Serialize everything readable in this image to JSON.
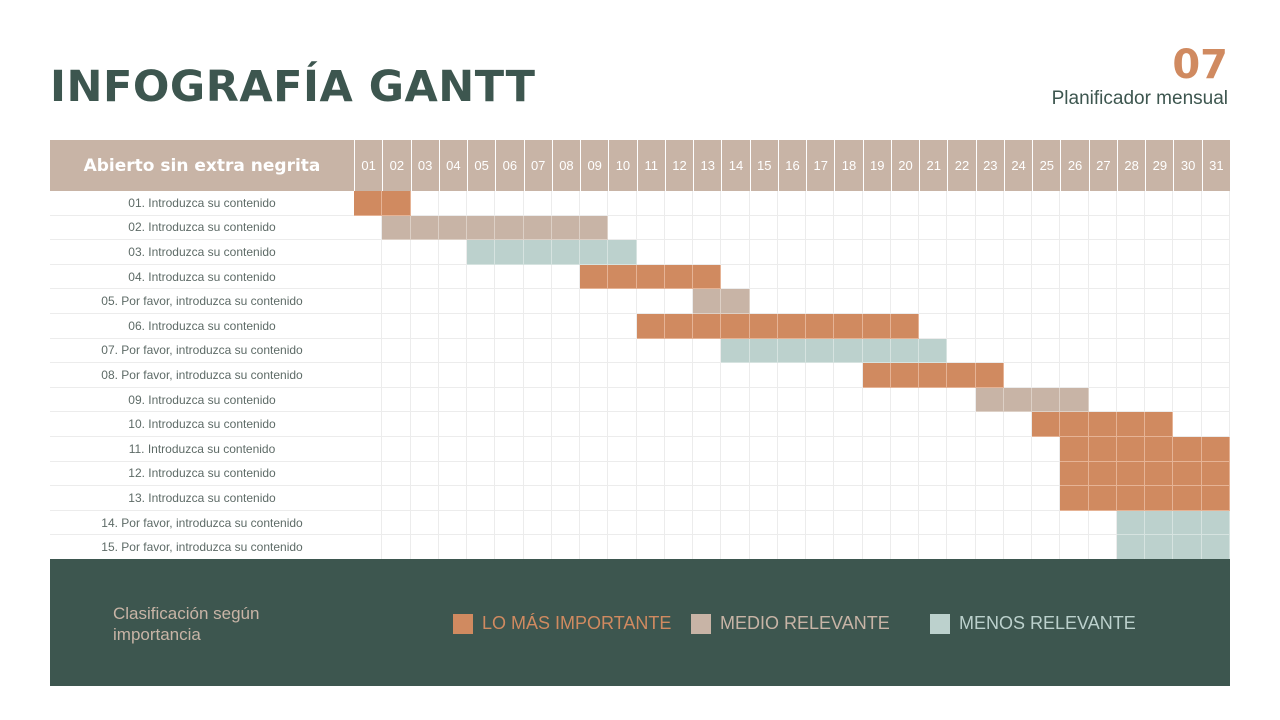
{
  "header": {
    "title": "INFOGRAFÍA GANTT",
    "page_number": "07",
    "subtitle": "Planificador mensual"
  },
  "table": {
    "header_label": "Abierto sin extra negrita",
    "days": [
      "01",
      "02",
      "03",
      "04",
      "05",
      "06",
      "07",
      "08",
      "09",
      "10",
      "11",
      "12",
      "13",
      "14",
      "15",
      "16",
      "17",
      "18",
      "19",
      "20",
      "21",
      "22",
      "23",
      "24",
      "25",
      "26",
      "27",
      "28",
      "29",
      "30",
      "31"
    ],
    "rows": [
      {
        "label": "01. Introduzca su contenido",
        "start": 1,
        "end": 2,
        "level": "high"
      },
      {
        "label": "02. Introduzca su contenido",
        "start": 2,
        "end": 9,
        "level": "mid"
      },
      {
        "label": "03. Introduzca su contenido",
        "start": 5,
        "end": 10,
        "level": "low"
      },
      {
        "label": "04. Introduzca su contenido",
        "start": 9,
        "end": 13,
        "level": "high"
      },
      {
        "label": "05. Por favor, introduzca su contenido",
        "start": 13,
        "end": 14,
        "level": "mid"
      },
      {
        "label": "06. Introduzca su contenido",
        "start": 11,
        "end": 20,
        "level": "high"
      },
      {
        "label": "07. Por favor, introduzca su contenido",
        "start": 14,
        "end": 21,
        "level": "low"
      },
      {
        "label": "08. Por favor, introduzca su contenido",
        "start": 19,
        "end": 23,
        "level": "high"
      },
      {
        "label": "09. Introduzca su contenido",
        "start": 23,
        "end": 26,
        "level": "mid"
      },
      {
        "label": "10. Introduzca su contenido",
        "start": 25,
        "end": 29,
        "level": "high"
      },
      {
        "label": "11. Introduzca su contenido",
        "start": 26,
        "end": 31,
        "level": "high"
      },
      {
        "label": "12. Introduzca su contenido",
        "start": 26,
        "end": 31,
        "level": "high"
      },
      {
        "label": "13. Introduzca su contenido",
        "start": 26,
        "end": 31,
        "level": "high"
      },
      {
        "label": "14. Por favor, introduzca su contenido",
        "start": 28,
        "end": 31,
        "level": "low"
      },
      {
        "label": "15. Por favor, introduzca su contenido",
        "start": 28,
        "end": 31,
        "level": "low"
      }
    ]
  },
  "legend": {
    "title": "Clasificación según importancia",
    "items": [
      {
        "label": "LO MÁS IMPORTANTE",
        "color": "#d08a60",
        "text_color": "#d08a60"
      },
      {
        "label": "MEDIO RELEVANTE",
        "color": "#c8b4a6",
        "text_color": "#c8b4a6"
      },
      {
        "label": "MENOS RELEVANTE",
        "color": "#bcd1cd",
        "text_color": "#bcd1cd"
      }
    ]
  },
  "colors": {
    "primary_dark": "#3d564f",
    "accent_orange": "#d08a60",
    "beige": "#c8b4a6",
    "mint": "#bcd1cd"
  }
}
